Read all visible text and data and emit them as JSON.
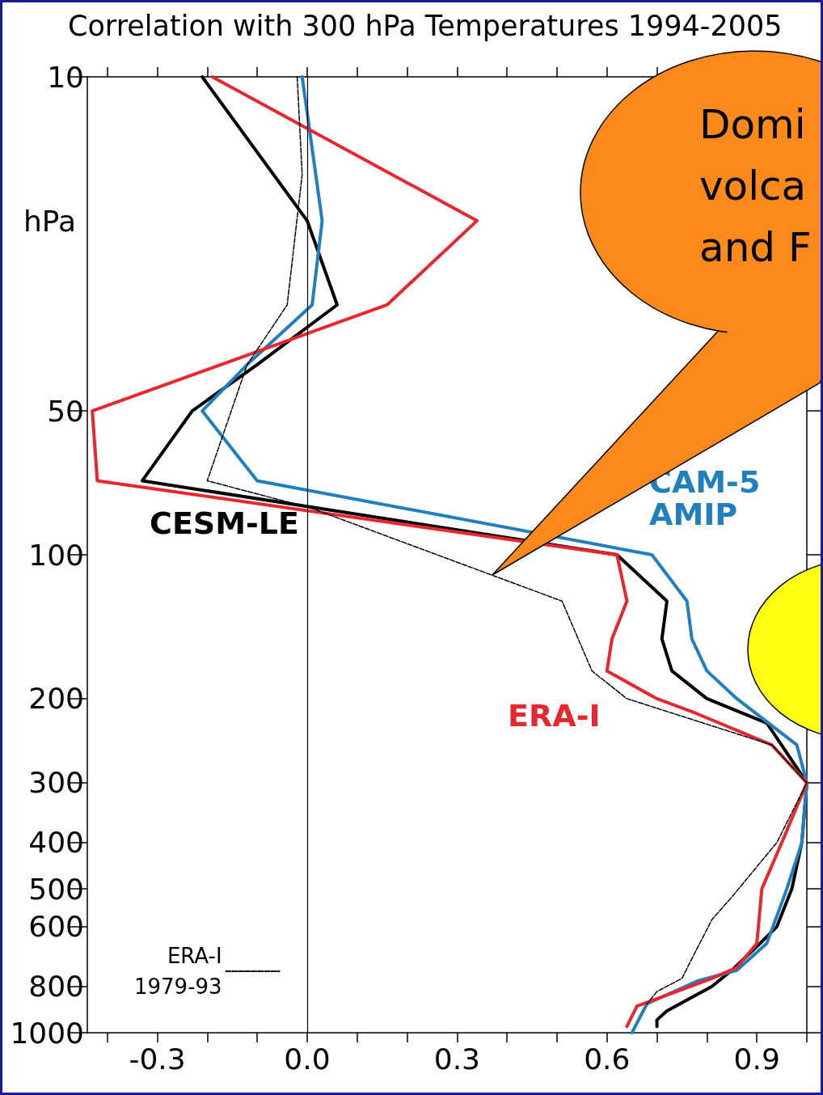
{
  "chart_data": {
    "type": "line",
    "title": "Correlation with 300 hPa Temperatures 1994-2005",
    "ylabel": "hPa",
    "xlim": [
      -0.44,
      1.0
    ],
    "xticks": [
      {
        "value": -0.4,
        "label": null
      },
      {
        "value": -0.3,
        "label": "-0.3"
      },
      {
        "value": -0.2,
        "label": null
      },
      {
        "value": -0.1,
        "label": null
      },
      {
        "value": 0,
        "label": "0.0"
      },
      {
        "value": 0.1,
        "label": null
      },
      {
        "value": 0.2,
        "label": null
      },
      {
        "value": 0.3,
        "label": "0.3"
      },
      {
        "value": 0.4,
        "label": null
      },
      {
        "value": 0.5,
        "label": null
      },
      {
        "value": 0.6,
        "label": "0.6"
      },
      {
        "value": 0.7,
        "label": null
      },
      {
        "value": 0.8,
        "label": null
      },
      {
        "value": 0.9,
        "label": "0.9"
      },
      {
        "value": 1.0,
        "label": null
      }
    ],
    "ylim": [
      1000,
      10
    ],
    "yticks": [
      10,
      50,
      100,
      200,
      300,
      400,
      500,
      600,
      800,
      1000
    ],
    "log": "y",
    "grid": false,
    "legend": "bottom left",
    "marker": "none",
    "ref_lines": [
      {
        "axis": "x",
        "value": 0,
        "color": "#000000"
      }
    ],
    "series": [
      {
        "name": "CESM-LE",
        "color": "#000000",
        "line_style": "solid",
        "x": [
          -0.21,
          0.0,
          0.06,
          -0.1,
          -0.23,
          -0.33,
          0.62,
          0.72,
          0.71,
          0.73,
          0.8,
          0.92,
          1.0,
          0.99,
          0.97,
          0.94,
          0.91,
          0.85,
          0.81,
          0.72,
          0.7,
          0.7
        ],
        "values": [
          10,
          20,
          30,
          40,
          50,
          70,
          100,
          125,
          150,
          175,
          200,
          225,
          300,
          400,
          500,
          600,
          645,
          740,
          800,
          900,
          940,
          970
        ]
      },
      {
        "name": "CAM-5 AMIP",
        "color": "#1f7fc1",
        "line_style": "solid",
        "x": [
          -0.01,
          0.03,
          0.01,
          -0.12,
          -0.21,
          -0.1,
          0.69,
          0.76,
          0.77,
          0.8,
          0.86,
          0.98,
          1.0,
          0.99,
          0.96,
          0.92,
          0.86,
          0.78,
          0.68,
          0.65
        ],
        "values": [
          10,
          20,
          30,
          40,
          50,
          70,
          100,
          125,
          150,
          175,
          200,
          250,
          300,
          400,
          500,
          650,
          740,
          780,
          870,
          1000
        ]
      },
      {
        "name": "ERA-I",
        "color": "#e8262e",
        "line_style": "solid",
        "x": [
          -0.19,
          0.34,
          0.16,
          -0.43,
          -0.42,
          0.62,
          0.64,
          0.61,
          0.6,
          0.7,
          0.78,
          0.93,
          1.0,
          0.95,
          0.91,
          0.9,
          0.86,
          0.81,
          0.66,
          0.64
        ],
        "values": [
          10,
          20,
          30,
          50,
          70,
          100,
          125,
          150,
          175,
          200,
          215,
          250,
          300,
          400,
          500,
          650,
          730,
          770,
          880,
          970
        ]
      },
      {
        "name": "ERA-I 1979-93",
        "color": "#000000",
        "line_style": "dashed",
        "x": [
          -0.02,
          -0.01,
          -0.04,
          -0.12,
          -0.2,
          0.01,
          0.51,
          0.57,
          0.64,
          0.93,
          1.0,
          0.94,
          0.85,
          0.81,
          0.77,
          0.75,
          0.7,
          0.68
        ],
        "values": [
          10,
          16,
          30,
          40,
          70,
          80,
          125,
          175,
          200,
          250,
          300,
          400,
          520,
          580,
          700,
          770,
          820,
          870
        ]
      }
    ],
    "annotations": [
      "Domi\nvolca\nand F"
    ]
  }
}
